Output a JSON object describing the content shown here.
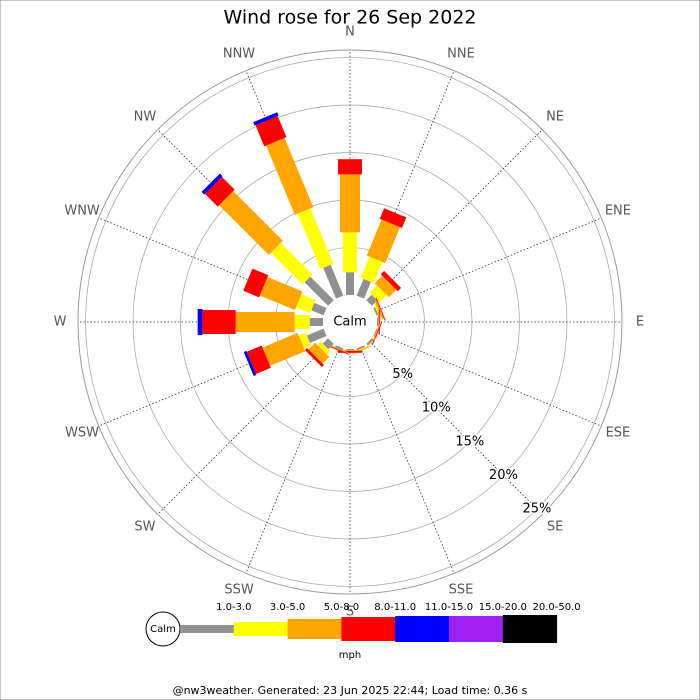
{
  "chart_data": {
    "type": "windrose",
    "title": "Wind rose for 26 Sep 2022",
    "directions": [
      "N",
      "NNE",
      "NE",
      "ENE",
      "E",
      "ESE",
      "SE",
      "SSE",
      "S",
      "SSW",
      "SW",
      "WSW",
      "W",
      "WNW",
      "NW",
      "NNW"
    ],
    "center_label": "Calm",
    "unit_label": "mph",
    "rlim": [
      0,
      25.8
    ],
    "rticks": [
      {
        "value": 5,
        "label": "5%"
      },
      {
        "value": 10,
        "label": "10%"
      },
      {
        "value": 15,
        "label": "15%"
      },
      {
        "value": 20,
        "label": "20%"
      },
      {
        "value": 25,
        "label": "25%"
      }
    ],
    "series": [
      {
        "name": "1.0-3.0",
        "color": "#909090",
        "values": [
          2.4,
          1.9,
          0.8,
          0.2,
          0.1,
          0.1,
          0.2,
          0.2,
          0.1,
          0.2,
          0.8,
          1.9,
          1.4,
          1.4,
          3.5,
          3.5
        ]
      },
      {
        "name": "3.0-5.0",
        "color": "#ffff00",
        "values": [
          4.2,
          2.4,
          1.1,
          0.2,
          0,
          0,
          0,
          0.1,
          0,
          0,
          0.5,
          0.8,
          1.6,
          1.6,
          4.7,
          6.3
        ]
      },
      {
        "name": "5.0-8.0",
        "color": "#ffa500",
        "values": [
          6.1,
          4.1,
          1.1,
          0.2,
          0.1,
          0.1,
          0.1,
          0.1,
          0.1,
          0.1,
          1.0,
          4.0,
          6.2,
          4.0,
          7.4,
          7.9
        ]
      },
      {
        "name": "8.0-11.0",
        "color": "#ff0000",
        "values": [
          1.6,
          1.2,
          0.5,
          0.1,
          0.1,
          0.1,
          0,
          0,
          0.2,
          0.1,
          0.3,
          1.7,
          3.5,
          1.8,
          1.9,
          2.4
        ]
      },
      {
        "name": "11.0-15.0",
        "color": "#0000ff",
        "values": [
          0,
          0,
          0,
          0,
          0,
          0,
          0,
          0,
          0,
          0,
          0,
          0.3,
          0.5,
          0,
          0.4,
          0.4
        ]
      },
      {
        "name": "15.0-20.0",
        "color": "#a020f0",
        "values": [
          0,
          0,
          0,
          0,
          0,
          0,
          0,
          0,
          0,
          0,
          0,
          0,
          0,
          0,
          0,
          0
        ]
      },
      {
        "name": "20.0-50.0",
        "color": "#000000",
        "values": [
          0,
          0,
          0,
          0,
          0,
          0,
          0,
          0,
          0,
          0,
          0,
          0,
          0,
          0,
          0,
          0
        ]
      }
    ]
  },
  "footer": "@nw3weather. Generated: 23 Jun 2025 22:44; Load time: 0.36 s"
}
